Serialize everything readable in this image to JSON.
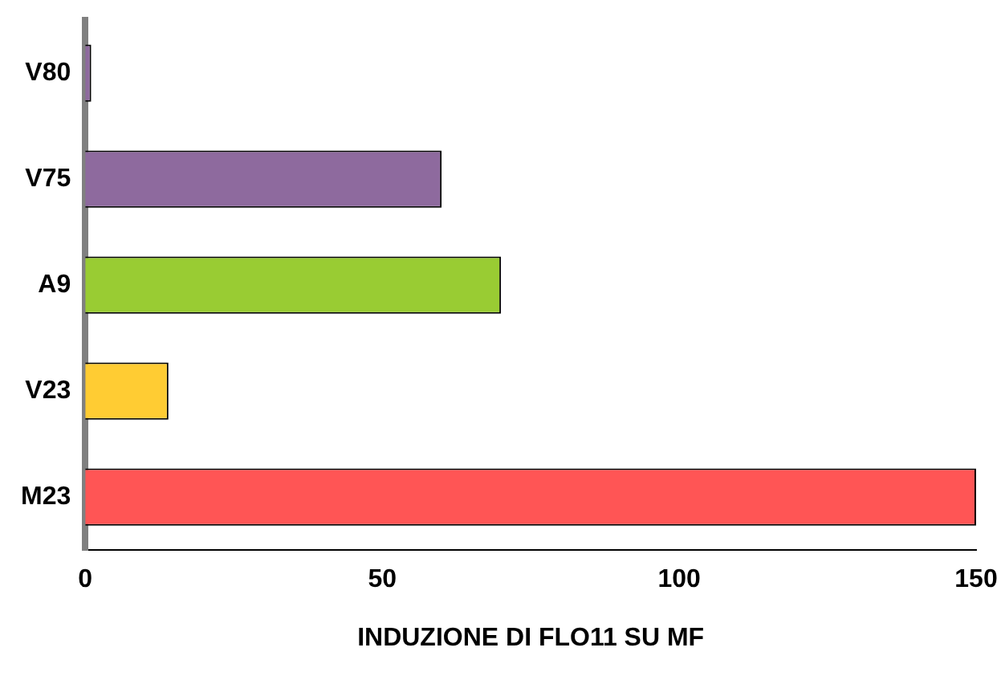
{
  "chart_data": {
    "type": "bar",
    "orientation": "horizontal",
    "xlabel": "INDUZIONE DI FLO11 SU MF",
    "categories": [
      "V80",
      "V75",
      "A9",
      "V23",
      "M23"
    ],
    "values": [
      1,
      60,
      70,
      14,
      150
    ],
    "colors": [
      "#8e6a9e",
      "#8e6a9e",
      "#99cc33",
      "#ffcc33",
      "#ff5555"
    ],
    "xlim": [
      0,
      150
    ],
    "xticks": [
      0,
      50,
      100,
      150
    ],
    "grid": false,
    "legend": false
  }
}
